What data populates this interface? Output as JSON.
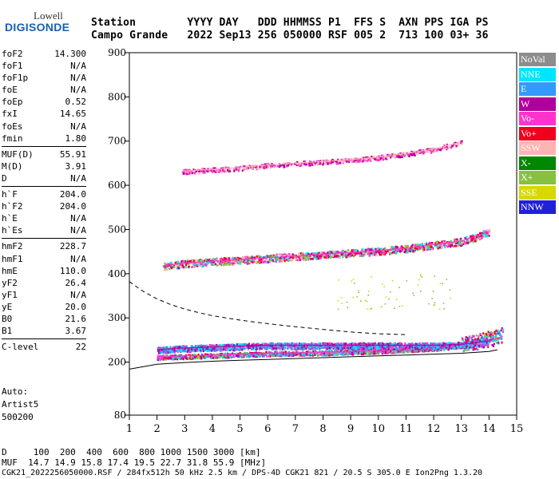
{
  "logo": {
    "brand": "Lowell",
    "name": "DIGISONDE"
  },
  "header": {
    "line1": "Station        YYYY DAY   DDD HHMMSS P1  FFS S  AXN PPS IGA PS",
    "line2": "Campo Grande   2022 Sep13 256 050000 RSF 005 2  713 100 03+ 36"
  },
  "params": [
    [
      {
        "k": "foF2",
        "v": "14.300"
      },
      {
        "k": "foF1",
        "v": "N/A"
      },
      {
        "k": "foF1p",
        "v": "N/A"
      },
      {
        "k": "foE",
        "v": "N/A"
      },
      {
        "k": "foEp",
        "v": "0.52"
      },
      {
        "k": "fxI",
        "v": "14.65"
      },
      {
        "k": "foEs",
        "v": "N/A"
      },
      {
        "k": "fmin",
        "v": "1.80"
      }
    ],
    [
      {
        "k": "MUF(D)",
        "v": "55.91"
      },
      {
        "k": "M(D)",
        "v": "3.91"
      },
      {
        "k": "D",
        "v": "N/A"
      }
    ],
    [
      {
        "k": "h`F",
        "v": "204.0"
      },
      {
        "k": "h`F2",
        "v": "204.0"
      },
      {
        "k": "h`E",
        "v": "N/A"
      },
      {
        "k": "h`Es",
        "v": "N/A"
      }
    ],
    [
      {
        "k": "hmF2",
        "v": "228.7"
      },
      {
        "k": "hmF1",
        "v": "N/A"
      },
      {
        "k": "hmE",
        "v": "110.0"
      },
      {
        "k": "yF2",
        "v": "26.4"
      },
      {
        "k": "yF1",
        "v": "N/A"
      },
      {
        "k": "yE",
        "v": "20.0"
      },
      {
        "k": "B0",
        "v": "21.6"
      },
      {
        "k": "B1",
        "v": "3.67"
      }
    ],
    [
      {
        "k": "C-level",
        "v": "22"
      }
    ]
  ],
  "auto": {
    "l1": "Auto:",
    "l2": "Artist5",
    "l3": "500200"
  },
  "legend": [
    {
      "label": "NoVal",
      "color": "#8c8c8c"
    },
    {
      "label": "NNE",
      "color": "#00e5ff"
    },
    {
      "label": "E",
      "color": "#3399ff"
    },
    {
      "label": "W",
      "color": "#b0009c"
    },
    {
      "label": "Vo-",
      "color": "#ff33cc"
    },
    {
      "label": "Vo+",
      "color": "#f0001c"
    },
    {
      "label": "SSW",
      "color": "#ffb3b3"
    },
    {
      "label": "X-",
      "color": "#008800"
    },
    {
      "label": "X+",
      "color": "#88c040"
    },
    {
      "label": "SSE",
      "color": "#d8d800"
    },
    {
      "label": "NNW",
      "color": "#2020d8"
    }
  ],
  "footer": {
    "line1": "D     100  200  400  600  800 1000 1500 3000 [km]",
    "line2": "MUF  14.7 14.9 15.8 17.4 19.5 22.7 31.8 55.9 [MHz]",
    "line3": "CGK21_2022256050000.RSF / 284fx512h 50 kHz 2.5 km / DPS-4D CGK21 821 / 20.5 S 305.0 E Ion2Png 1.3.20"
  },
  "chart_data": {
    "type": "scatter",
    "title": "",
    "xlabel": "",
    "ylabel": "",
    "xlim": [
      1,
      15
    ],
    "ylim": [
      80,
      900
    ],
    "xticks": [
      1,
      2,
      3,
      4,
      5,
      6,
      7,
      8,
      9,
      10,
      11,
      12,
      13,
      14,
      15
    ],
    "yticks": [
      80,
      200,
      300,
      400,
      500,
      600,
      700,
      800,
      900
    ],
    "series": [
      {
        "name": "Vo-",
        "kind": "trace_o_first_hop",
        "x": [
          2.0,
          3.0,
          4.0,
          5.0,
          6.0,
          7.0,
          8.0,
          9.0,
          10.0,
          11.0,
          12.0,
          13.0,
          13.5,
          14.0,
          14.5
        ],
        "y": [
          212,
          214,
          216,
          218,
          220,
          221,
          222,
          224,
          226,
          229,
          232,
          238,
          242,
          248,
          258
        ]
      },
      {
        "name": "W",
        "kind": "trace_x_spread",
        "x": [
          2.0,
          3.0,
          4.0,
          5.0,
          6.0,
          7.0,
          8.0,
          9.0,
          10.0,
          11.0,
          12.0,
          13.0,
          14.0
        ],
        "y": [
          228,
          232,
          234,
          236,
          238,
          238,
          238,
          238,
          238,
          238,
          238,
          240,
          248
        ]
      },
      {
        "name": "Vo-",
        "kind": "second_hop",
        "x": [
          2.2,
          3.0,
          4.0,
          5.0,
          6.0,
          7.0,
          8.0,
          9.0,
          10.0,
          11.0,
          12.0,
          13.0,
          13.5,
          14.0
        ],
        "y": [
          418,
          424,
          428,
          432,
          436,
          440,
          444,
          448,
          452,
          458,
          466,
          474,
          484,
          496
        ]
      },
      {
        "name": "SSW",
        "kind": "third_hop",
        "x": [
          2.9,
          4.0,
          5.0,
          6.0,
          7.0,
          8.0,
          9.0,
          10.0,
          11.0,
          12.0,
          13.0
        ],
        "y": [
          632,
          636,
          640,
          646,
          650,
          654,
          658,
          664,
          672,
          682,
          698
        ]
      },
      {
        "name": "NoVal",
        "kind": "profile_solid",
        "x": [
          1.0,
          2.0,
          3.0,
          4.0,
          5.0,
          6.0,
          7.0,
          8.0,
          9.0,
          10.0,
          11.0,
          12.0,
          13.0,
          14.0,
          14.3
        ],
        "y": [
          184,
          195,
          199,
          202,
          204,
          206,
          208,
          210,
          212,
          214,
          216,
          218,
          220,
          224,
          228
        ]
      },
      {
        "name": "NoVal",
        "kind": "muf_dashed",
        "x": [
          1.0,
          1.5,
          2.0,
          2.5,
          3.0,
          3.5,
          4.0,
          5.0,
          6.0,
          7.0,
          8.0,
          9.0,
          10.0,
          11.0
        ],
        "y": [
          382,
          360,
          343,
          330,
          320,
          312,
          305,
          295,
          287,
          280,
          274,
          268,
          264,
          262
        ]
      }
    ]
  }
}
